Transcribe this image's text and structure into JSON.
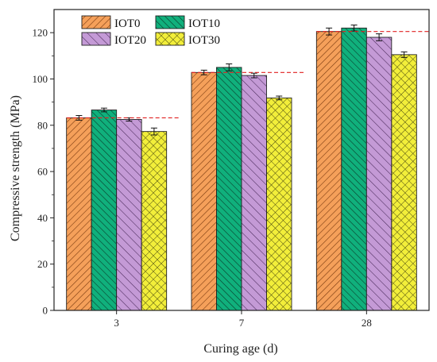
{
  "chart_data": {
    "type": "bar",
    "xlabel": "Curing age (d)",
    "ylabel": "Compressive strength (MPa)",
    "categories": [
      "3",
      "7",
      "28"
    ],
    "ylim": [
      0,
      130
    ],
    "yticks": [
      0,
      20,
      40,
      60,
      80,
      100,
      120
    ],
    "grid": false,
    "legend_position": "top-left",
    "legend_columns": 2,
    "series": [
      {
        "name": "IOT0",
        "values": [
          83.2,
          102.8,
          120.5
        ],
        "errors": [
          1.0,
          1.0,
          1.5
        ],
        "color": "#f5a05a",
        "pattern": "diag-right"
      },
      {
        "name": "IOT10",
        "values": [
          86.6,
          105.0,
          122.0
        ],
        "errors": [
          0.8,
          1.5,
          1.3
        ],
        "color": "#10b07c",
        "pattern": "diag-left"
      },
      {
        "name": "IOT20",
        "values": [
          82.5,
          101.5,
          118.0
        ],
        "errors": [
          0.7,
          1.0,
          1.5
        ],
        "color": "#c49ad6",
        "pattern": "diag-left-sparse"
      },
      {
        "name": "IOT30",
        "values": [
          77.3,
          91.8,
          110.5
        ],
        "errors": [
          1.5,
          0.8,
          1.2
        ],
        "color": "#f2ee3a",
        "pattern": "cross"
      }
    ],
    "reference_lines": {
      "color": "#e02020",
      "style": "dashed",
      "values": [
        83.2,
        102.8,
        120.5
      ]
    }
  }
}
